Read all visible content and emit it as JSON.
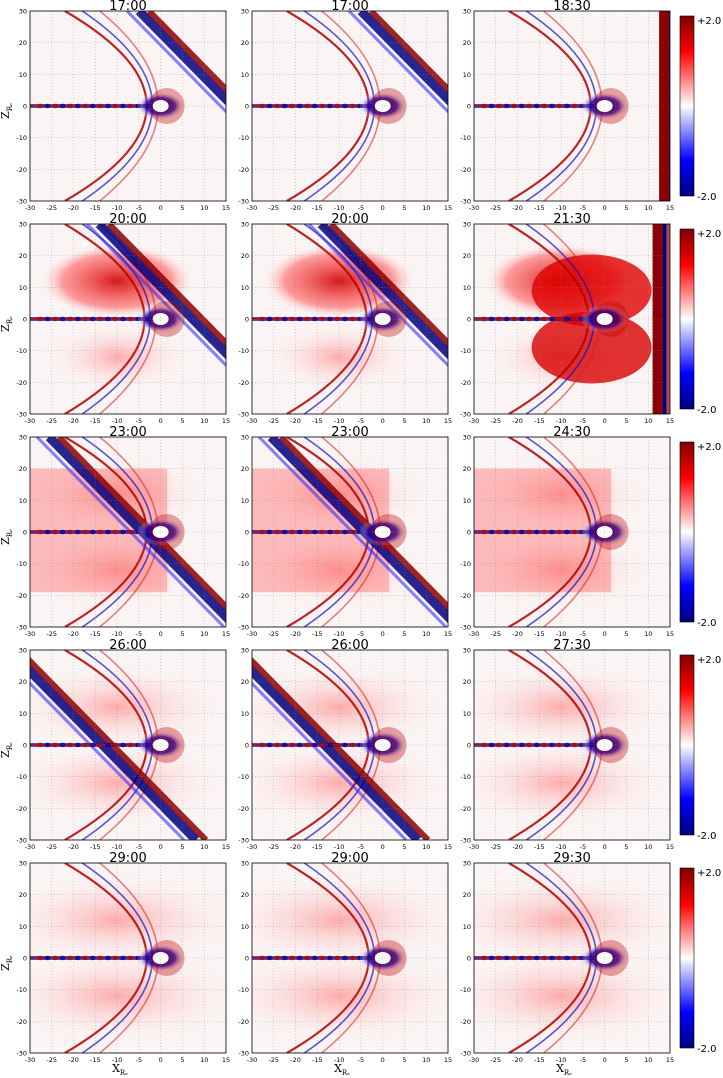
{
  "figure": {
    "rows": [
      {
        "titles": [
          "17:00",
          "17:00",
          "18:30"
        ],
        "colorbar": {
          "max_label": "+2.0",
          "min_label": "-2.0"
        }
      },
      {
        "titles": [
          "20:00",
          "20:00",
          "21:30"
        ],
        "colorbar": {
          "max_label": "+2.0",
          "min_label": "-2.0"
        }
      },
      {
        "titles": [
          "23:00",
          "23:00",
          "24:30"
        ],
        "colorbar": {
          "max_label": "+2.0",
          "min_label": "-2.0"
        }
      },
      {
        "titles": [
          "26:00",
          "26:00",
          "27:30"
        ],
        "colorbar": {
          "max_label": "+2.0",
          "min_label": "-2.0"
        }
      },
      {
        "titles": [
          "29:00",
          "29:00",
          "29:30"
        ],
        "colorbar": {
          "max_label": "+2.0",
          "min_label": "-2.0"
        }
      }
    ],
    "ylabel": "Z_{R_E}",
    "xlabel": "X_{R_E}",
    "colormap": {
      "negative": "#00007f",
      "zero": "#ffffff",
      "positive": "#7f0000"
    }
  },
  "chart_data": {
    "type": "heatmap",
    "panel_count": 15,
    "panel_titles": [
      "17:00",
      "17:00",
      "18:30",
      "20:00",
      "20:00",
      "21:30",
      "23:00",
      "23:00",
      "24:30",
      "26:00",
      "26:00",
      "27:30",
      "29:00",
      "29:00",
      "29:30"
    ],
    "xlim": [
      -30,
      15
    ],
    "ylim": [
      -30,
      30
    ],
    "x_ticks": [
      -30,
      -25,
      -20,
      -15,
      -10,
      -5,
      0,
      5,
      10,
      15
    ],
    "y_ticks": [
      -30,
      -20,
      -10,
      0,
      10,
      20,
      30
    ],
    "xlabel": "X_{R_E}",
    "ylabel": "Z_{R_E}",
    "color_range": [
      -2.0,
      2.0
    ],
    "grid": true
  }
}
